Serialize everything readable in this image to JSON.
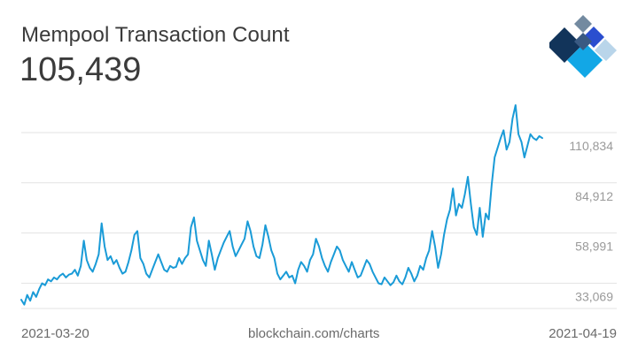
{
  "header": {
    "title": "Mempool Transaction Count",
    "current_value": "105,439"
  },
  "footer": {
    "start_date": "2021-03-20",
    "source": "blockchain.com/charts",
    "end_date": "2021-04-19"
  },
  "colors": {
    "line": "#1a9bd7",
    "grid": "#e3e3e3",
    "axis_label": "#9a9a9a",
    "text": "#3b3b3b",
    "logo_dark": "#12345a",
    "logo_mid": "#3a5a82",
    "logo_blue": "#2a4ecf",
    "logo_sky": "#12a7e6",
    "logo_light": "#b9d5ea",
    "logo_gray": "#738aa0"
  },
  "logo": {
    "icon": "blockchain-logo-icon"
  },
  "chart_data": {
    "type": "line",
    "title": "Mempool Transaction Count",
    "xlabel": "",
    "ylabel": "",
    "x_range": [
      "2021-03-20",
      "2021-04-19"
    ],
    "ylim": [
      20000,
      130000
    ],
    "grid": true,
    "y_ticks": [
      {
        "value": 33069,
        "label": "33,069"
      },
      {
        "value": 58991,
        "label": "58,991"
      },
      {
        "value": 84912,
        "label": "84,912"
      },
      {
        "value": 110834,
        "label": "110,834"
      }
    ],
    "series": [
      {
        "values": [
          24500,
          22000,
          27000,
          24000,
          28500,
          26000,
          30000,
          33000,
          32000,
          35000,
          34000,
          36000,
          35000,
          37000,
          38000,
          36000,
          37500,
          38000,
          40000,
          37000,
          42000,
          55000,
          45000,
          41000,
          39000,
          43000,
          48000,
          64000,
          52000,
          45000,
          47000,
          43000,
          45000,
          41000,
          38000,
          39000,
          44000,
          50000,
          58000,
          60000,
          46000,
          43000,
          38000,
          36000,
          40000,
          44000,
          48000,
          44000,
          40000,
          39000,
          42000,
          41000,
          41500,
          46000,
          43000,
          46000,
          48000,
          62000,
          67000,
          55000,
          50000,
          45000,
          42000,
          55000,
          48000,
          40000,
          46000,
          50000,
          54000,
          57000,
          60000,
          52000,
          47000,
          50000,
          53000,
          56000,
          65000,
          60000,
          52000,
          47000,
          46000,
          53000,
          63000,
          57000,
          50000,
          46000,
          38000,
          35000,
          37000,
          39000,
          36000,
          37000,
          33000,
          40000,
          44000,
          42000,
          39000,
          45000,
          48000,
          56000,
          52000,
          46000,
          42000,
          39000,
          44000,
          48000,
          52000,
          50000,
          45000,
          42000,
          39000,
          44000,
          40000,
          36000,
          37000,
          41000,
          45000,
          43000,
          39000,
          36000,
          33000,
          32500,
          36000,
          34000,
          32000,
          33500,
          37000,
          34000,
          32500,
          36000,
          41000,
          38000,
          34000,
          37000,
          42000,
          40000,
          46000,
          50000,
          60000,
          52000,
          41000,
          48000,
          58000,
          66000,
          71000,
          82000,
          68000,
          74000,
          72000,
          79000,
          88000,
          74000,
          62000,
          58000,
          72000,
          57000,
          69000,
          66000,
          84000,
          98000,
          103000,
          108000,
          112000,
          102000,
          106000,
          118000,
          125000,
          110000,
          106000,
          98000,
          104000,
          110000,
          108000,
          107000,
          109000,
          108000
        ]
      }
    ]
  }
}
